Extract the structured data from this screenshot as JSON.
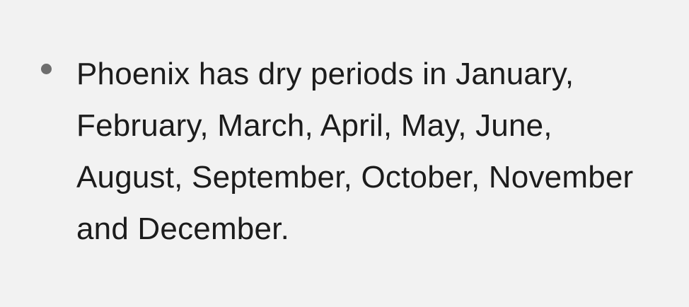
{
  "list": {
    "items": [
      {
        "text": "Phoenix has dry periods in January, February, March, April, May, June, August, September, October, November and December."
      }
    ]
  }
}
